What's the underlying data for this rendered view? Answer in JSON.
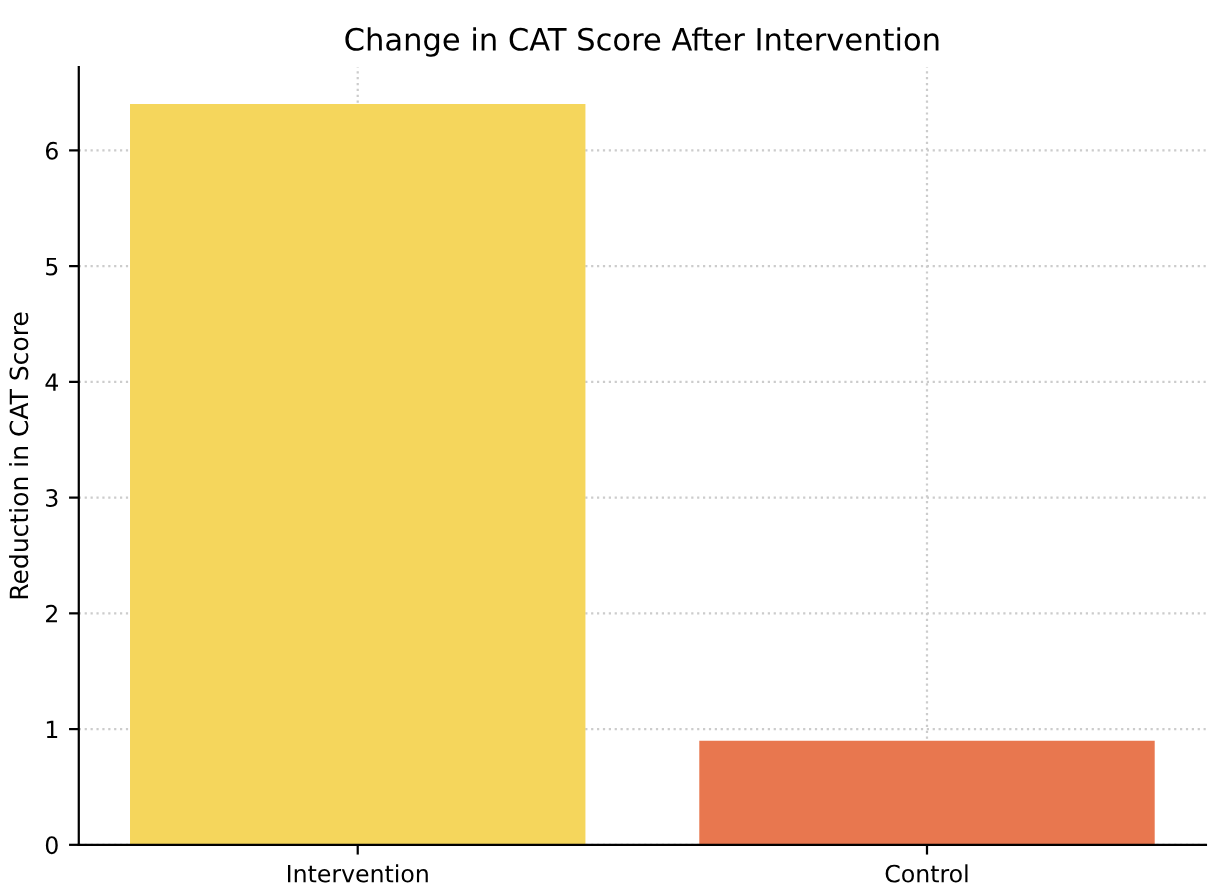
{
  "chart_data": {
    "type": "bar",
    "title": "Change in CAT Score After Intervention",
    "ylabel": "Reduction in CAT Score",
    "categories": [
      "Intervention",
      "Control"
    ],
    "values": [
      6.4,
      0.9
    ],
    "colors": [
      "#f5d65c",
      "#e8774f"
    ],
    "ylim": [
      0,
      6.72
    ],
    "yticks": [
      0,
      1,
      2,
      3,
      4,
      5,
      6
    ],
    "grid": true
  }
}
